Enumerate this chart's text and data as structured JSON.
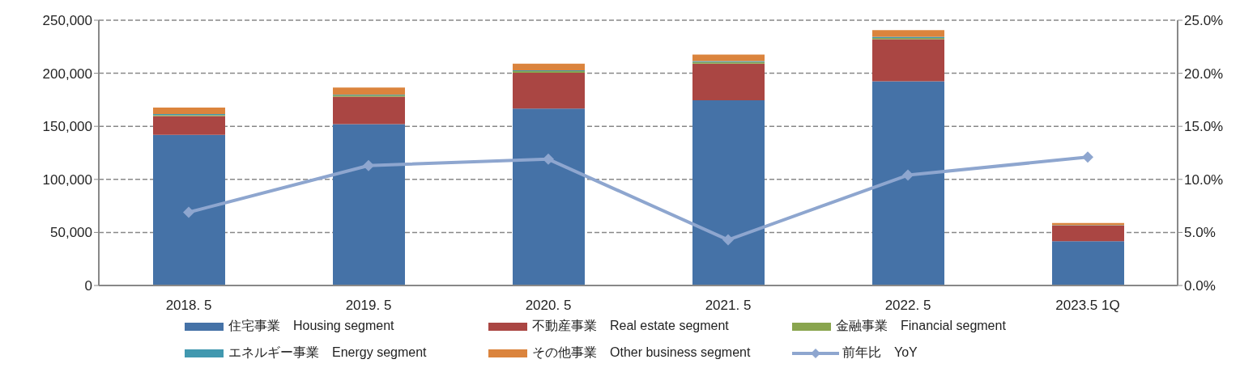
{
  "chart_data": {
    "type": "bar",
    "stacked": true,
    "categories": [
      "2018. 5",
      "2019. 5",
      "2020. 5",
      "2021. 5",
      "2022. 5",
      "2023.5 1Q"
    ],
    "series": [
      {
        "name": "住宅事業　Housing segment",
        "color": "#4572a7",
        "values": [
          141900,
          152000,
          166700,
          174500,
          192500,
          41800
        ]
      },
      {
        "name": "不動産事業　Real estate segment",
        "color": "#aa4643",
        "values": [
          17700,
          26000,
          33700,
          34500,
          39500,
          14700
        ]
      },
      {
        "name": "金融事業　Financial segment",
        "color": "#89a54e",
        "values": [
          1000,
          1400,
          1500,
          1500,
          1300,
          300
        ]
      },
      {
        "name": "エネルギー事業　Energy segment",
        "color": "#4198af",
        "values": [
          1000,
          500,
          800,
          1000,
          1000,
          200
        ]
      },
      {
        "name": "その他事業　Other business segment",
        "color": "#db843d",
        "values": [
          6100,
          6600,
          6300,
          6100,
          6300,
          1800
        ]
      },
      {
        "name": "前年比　YoY",
        "type": "line",
        "axis": "y2",
        "color": "#8ea6cf",
        "marker": "diamond",
        "values": [
          6.9,
          11.3,
          11.9,
          4.3,
          10.4,
          12.1
        ]
      }
    ],
    "ylim": [
      0,
      250000
    ],
    "yticks": [
      {
        "value": 0,
        "label": "0"
      },
      {
        "value": 50000,
        "label": "50,000"
      },
      {
        "value": 100000,
        "label": "100,000"
      },
      {
        "value": 150000,
        "label": "150,000"
      },
      {
        "value": 200000,
        "label": "200,000"
      },
      {
        "value": 250000,
        "label": "250,000"
      }
    ],
    "y2lim": [
      0,
      25
    ],
    "y2ticks": [
      {
        "value": 0,
        "label": "0.0%"
      },
      {
        "value": 5,
        "label": "5.0%"
      },
      {
        "value": 10,
        "label": "10.0%"
      },
      {
        "value": 15,
        "label": "15.0%"
      },
      {
        "value": 20,
        "label": "20.0%"
      },
      {
        "value": 25,
        "label": "25.0%"
      }
    ],
    "grid": "y",
    "legend": "bottom"
  }
}
